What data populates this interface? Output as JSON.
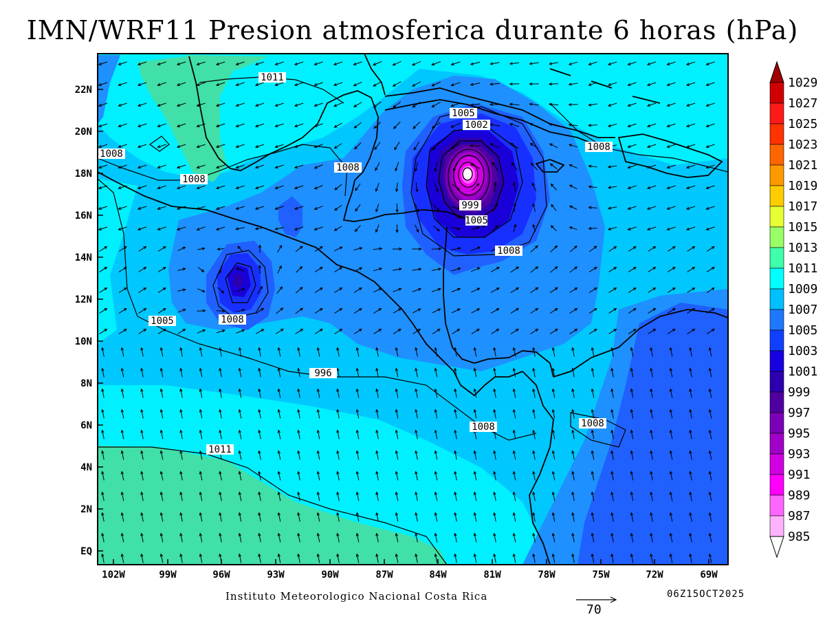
{
  "title": "IMN/WRF11 Presion atmosferica durante 6 horas (hPa)",
  "footer": "Instituto Meteorologico Nacional Costa Rica",
  "timestamp": "06Z15OCT2025",
  "vector_reference": "70",
  "lat_labels": [
    "22N",
    "20N",
    "18N",
    "16N",
    "14N",
    "12N",
    "10N",
    "8N",
    "6N",
    "4N",
    "2N",
    "EQ"
  ],
  "lon_labels": [
    "102W",
    "99W",
    "96W",
    "93W",
    "90W",
    "87W",
    "84W",
    "81W",
    "78W",
    "75W",
    "72W",
    "69W"
  ],
  "colorbar": {
    "levels": [
      "1029",
      "1027",
      "1025",
      "1023",
      "1021",
      "1019",
      "1017",
      "1015",
      "1013",
      "1011",
      "1009",
      "1007",
      "1005",
      "1003",
      "1001",
      "999",
      "997",
      "995",
      "993",
      "991",
      "989",
      "987",
      "985"
    ],
    "colors": [
      "#a00000",
      "#d00000",
      "#ff1a1a",
      "#ff3300",
      "#ff6600",
      "#ff9900",
      "#ffcc00",
      "#e6ff33",
      "#99ff66",
      "#40ffaa",
      "#00ffff",
      "#00c0ff",
      "#1e78ff",
      "#1040ff",
      "#1800e0",
      "#2c00b0",
      "#5000a0",
      "#7a00b8",
      "#a000c8",
      "#d000e0",
      "#ff00ff",
      "#ff66ff",
      "#ffb3ff"
    ]
  },
  "contour_labels": [
    "1011",
    "1005",
    "1002",
    "1008",
    "1008",
    "1008",
    "1008",
    "996",
    "999",
    "1005",
    "1008",
    "1005",
    "1008",
    "1008",
    "1008",
    "1011"
  ],
  "colors": {
    "p1013": "#40e0a8",
    "p1011": "#00f0ff",
    "p1009": "#00c8ff",
    "p1007": "#1e90ff",
    "p1005": "#2060ff",
    "p1003": "#1830ff",
    "p1001": "#1a00d8",
    "p999": "#2c00b0",
    "p997": "#5000a0",
    "p995": "#7a00b8",
    "p993": "#a000c8",
    "p991": "#d000e0",
    "p989": "#ff00ff",
    "p987": "#ff66ff",
    "p985": "#ffffff"
  }
}
